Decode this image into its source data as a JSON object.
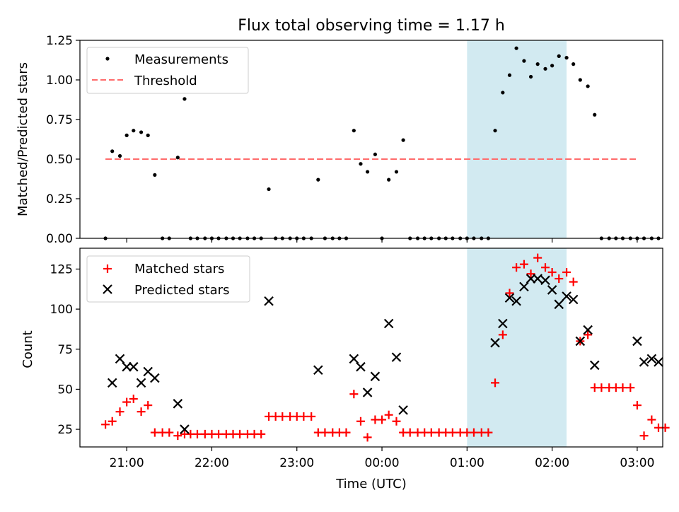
{
  "chart_data": [
    {
      "type": "scatter",
      "title": "Flux total observing time = 1.17 h",
      "xlabel": "",
      "ylabel": "Matched/Predicted stars",
      "ylim": [
        0,
        1.25
      ],
      "xlim": [
        -0.55,
        6.3
      ],
      "yticks": [
        "0.00",
        "0.25",
        "0.50",
        "0.75",
        "1.00",
        "1.25"
      ],
      "legend": {
        "placement": "top-left",
        "entries": [
          "Measurements",
          "Threshold"
        ]
      },
      "highlight_span": {
        "x": [
          4.0,
          5.17
        ],
        "color": "#add8e6"
      },
      "threshold": {
        "name": "Threshold",
        "value": 0.5,
        "x": [
          -0.25,
          6.0
        ],
        "color": "#ff6b6b"
      },
      "series": [
        {
          "name": "Measurements",
          "marker": "dot",
          "color": "#000000",
          "points": [
            [
              -0.25,
              0.0
            ],
            [
              -0.17,
              0.55
            ],
            [
              -0.08,
              0.52
            ],
            [
              0.0,
              0.65
            ],
            [
              0.08,
              0.68
            ],
            [
              0.17,
              0.67
            ],
            [
              0.25,
              0.65
            ],
            [
              0.33,
              0.4
            ],
            [
              0.42,
              0.0
            ],
            [
              0.5,
              0.0
            ],
            [
              0.6,
              0.51
            ],
            [
              0.68,
              0.88
            ],
            [
              0.75,
              0.0
            ],
            [
              0.83,
              0.0
            ],
            [
              0.92,
              0.0
            ],
            [
              1.0,
              0.0
            ],
            [
              1.08,
              0.0
            ],
            [
              1.17,
              0.0
            ],
            [
              1.25,
              0.0
            ],
            [
              1.33,
              0.0
            ],
            [
              1.42,
              0.0
            ],
            [
              1.5,
              0.0
            ],
            [
              1.58,
              0.0
            ],
            [
              1.67,
              0.31
            ],
            [
              1.75,
              0.0
            ],
            [
              1.83,
              0.0
            ],
            [
              1.92,
              0.0
            ],
            [
              2.0,
              0.0
            ],
            [
              2.08,
              0.0
            ],
            [
              2.17,
              0.0
            ],
            [
              2.25,
              0.37
            ],
            [
              2.33,
              0.0
            ],
            [
              2.42,
              0.0
            ],
            [
              2.5,
              0.0
            ],
            [
              2.58,
              0.0
            ],
            [
              2.67,
              0.68
            ],
            [
              2.75,
              0.47
            ],
            [
              2.83,
              0.42
            ],
            [
              2.92,
              0.53
            ],
            [
              3.0,
              0.0
            ],
            [
              3.08,
              0.37
            ],
            [
              3.17,
              0.42
            ],
            [
              3.25,
              0.62
            ],
            [
              3.33,
              0.0
            ],
            [
              3.42,
              0.0
            ],
            [
              3.5,
              0.0
            ],
            [
              3.58,
              0.0
            ],
            [
              3.67,
              0.0
            ],
            [
              3.75,
              0.0
            ],
            [
              3.83,
              0.0
            ],
            [
              3.92,
              0.0
            ],
            [
              4.0,
              0.0
            ],
            [
              4.08,
              0.0
            ],
            [
              4.17,
              0.0
            ],
            [
              4.25,
              0.0
            ],
            [
              4.33,
              0.68
            ],
            [
              4.42,
              0.92
            ],
            [
              4.5,
              1.03
            ],
            [
              4.58,
              1.2
            ],
            [
              4.67,
              1.12
            ],
            [
              4.75,
              1.02
            ],
            [
              4.83,
              1.1
            ],
            [
              4.92,
              1.07
            ],
            [
              5.0,
              1.09
            ],
            [
              5.08,
              1.15
            ],
            [
              5.17,
              1.14
            ],
            [
              5.25,
              1.1
            ],
            [
              5.33,
              1.0
            ],
            [
              5.42,
              0.96
            ],
            [
              5.5,
              0.78
            ],
            [
              5.58,
              0.0
            ],
            [
              5.67,
              0.0
            ],
            [
              5.75,
              0.0
            ],
            [
              5.83,
              0.0
            ],
            [
              5.92,
              0.0
            ],
            [
              6.0,
              0.0
            ],
            [
              6.08,
              0.0
            ],
            [
              6.17,
              0.0
            ],
            [
              6.25,
              0.0
            ]
          ]
        }
      ]
    },
    {
      "type": "scatter",
      "xlabel": "Time (UTC)",
      "ylabel": "Count",
      "ylim": [
        14,
        138
      ],
      "xlim": [
        -0.55,
        6.3
      ],
      "yticks": [
        "25",
        "50",
        "75",
        "100",
        "125"
      ],
      "xticks": [
        "21:00",
        "22:00",
        "23:00",
        "00:00",
        "01:00",
        "02:00",
        "03:00"
      ],
      "legend": {
        "placement": "top-left",
        "entries": [
          "Matched stars",
          "Predicted stars"
        ]
      },
      "highlight_span": {
        "x": [
          4.0,
          5.17
        ],
        "color": "#add8e6"
      },
      "series": [
        {
          "name": "Matched stars",
          "marker": "plus",
          "color": "#ff0000",
          "points": [
            [
              -0.25,
              28
            ],
            [
              -0.17,
              30
            ],
            [
              -0.08,
              36
            ],
            [
              0.0,
              42
            ],
            [
              0.08,
              44
            ],
            [
              0.17,
              36
            ],
            [
              0.25,
              40
            ],
            [
              0.33,
              23
            ],
            [
              0.42,
              23
            ],
            [
              0.5,
              23
            ],
            [
              0.6,
              21
            ],
            [
              0.68,
              22
            ],
            [
              0.75,
              22
            ],
            [
              0.83,
              22
            ],
            [
              0.92,
              22
            ],
            [
              1.0,
              22
            ],
            [
              1.08,
              22
            ],
            [
              1.17,
              22
            ],
            [
              1.25,
              22
            ],
            [
              1.33,
              22
            ],
            [
              1.42,
              22
            ],
            [
              1.5,
              22
            ],
            [
              1.58,
              22
            ],
            [
              1.67,
              33
            ],
            [
              1.75,
              33
            ],
            [
              1.83,
              33
            ],
            [
              1.92,
              33
            ],
            [
              2.0,
              33
            ],
            [
              2.08,
              33
            ],
            [
              2.17,
              33
            ],
            [
              2.25,
              23
            ],
            [
              2.33,
              23
            ],
            [
              2.42,
              23
            ],
            [
              2.5,
              23
            ],
            [
              2.58,
              23
            ],
            [
              2.67,
              47
            ],
            [
              2.75,
              30
            ],
            [
              2.83,
              20
            ],
            [
              2.92,
              31
            ],
            [
              3.0,
              31
            ],
            [
              3.08,
              34
            ],
            [
              3.17,
              30
            ],
            [
              3.25,
              23
            ],
            [
              3.33,
              23
            ],
            [
              3.42,
              23
            ],
            [
              3.5,
              23
            ],
            [
              3.58,
              23
            ],
            [
              3.67,
              23
            ],
            [
              3.75,
              23
            ],
            [
              3.83,
              23
            ],
            [
              3.92,
              23
            ],
            [
              4.0,
              23
            ],
            [
              4.08,
              23
            ],
            [
              4.17,
              23
            ],
            [
              4.25,
              23
            ],
            [
              4.33,
              54
            ],
            [
              4.42,
              84
            ],
            [
              4.5,
              110
            ],
            [
              4.58,
              126
            ],
            [
              4.67,
              128
            ],
            [
              4.75,
              122
            ],
            [
              4.83,
              132
            ],
            [
              4.92,
              126
            ],
            [
              5.0,
              123
            ],
            [
              5.08,
              119
            ],
            [
              5.17,
              123
            ],
            [
              5.25,
              117
            ],
            [
              5.33,
              80
            ],
            [
              5.42,
              84
            ],
            [
              5.5,
              51
            ],
            [
              5.58,
              51
            ],
            [
              5.67,
              51
            ],
            [
              5.75,
              51
            ],
            [
              5.83,
              51
            ],
            [
              5.92,
              51
            ],
            [
              6.0,
              40
            ],
            [
              6.08,
              21
            ],
            [
              6.17,
              31
            ],
            [
              6.25,
              26
            ],
            [
              6.33,
              26
            ]
          ]
        },
        {
          "name": "Predicted stars",
          "marker": "x",
          "color": "#000000",
          "points": [
            [
              -0.17,
              54
            ],
            [
              -0.08,
              69
            ],
            [
              0.0,
              64
            ],
            [
              0.08,
              64
            ],
            [
              0.17,
              54
            ],
            [
              0.25,
              61
            ],
            [
              0.33,
              57
            ],
            [
              0.6,
              41
            ],
            [
              0.68,
              25
            ],
            [
              1.67,
              105
            ],
            [
              2.25,
              62
            ],
            [
              2.67,
              69
            ],
            [
              2.75,
              64
            ],
            [
              2.83,
              48
            ],
            [
              2.92,
              58
            ],
            [
              3.08,
              91
            ],
            [
              3.17,
              70
            ],
            [
              3.25,
              37
            ],
            [
              4.33,
              79
            ],
            [
              4.42,
              91
            ],
            [
              4.5,
              107
            ],
            [
              4.58,
              105
            ],
            [
              4.67,
              114
            ],
            [
              4.75,
              119
            ],
            [
              4.83,
              119
            ],
            [
              4.92,
              118
            ],
            [
              5.0,
              112
            ],
            [
              5.08,
              103
            ],
            [
              5.17,
              108
            ],
            [
              5.25,
              106
            ],
            [
              5.33,
              80
            ],
            [
              5.42,
              87
            ],
            [
              5.5,
              65
            ],
            [
              6.0,
              80
            ],
            [
              6.08,
              67
            ],
            [
              6.17,
              69
            ],
            [
              6.25,
              67
            ]
          ]
        }
      ]
    }
  ]
}
